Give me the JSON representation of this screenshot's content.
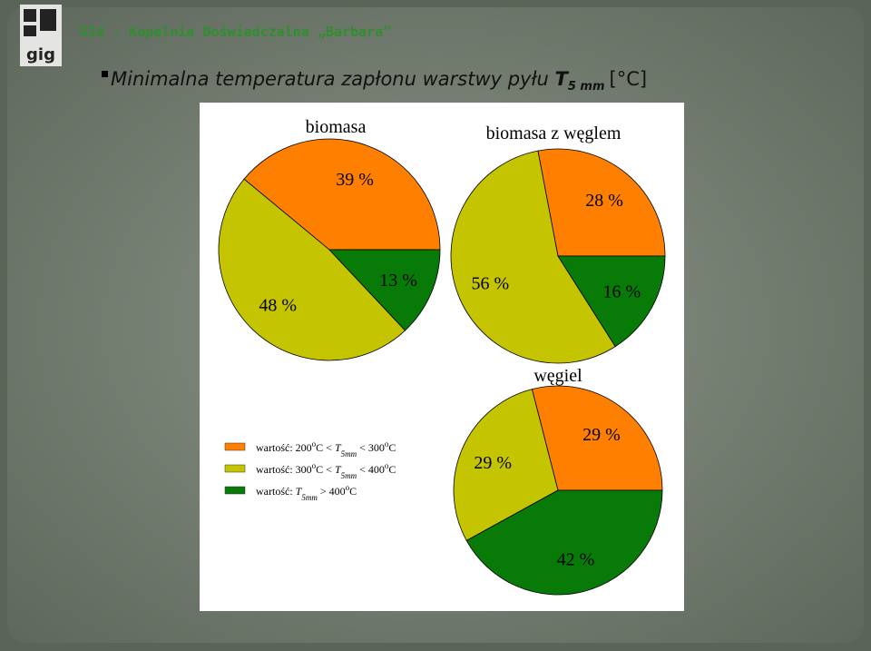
{
  "header": "GIG - Kopalnia Doświadczalna „Barbara”",
  "title": "Minimalna temperatura zapłonu warstwy pyłu",
  "title_symbol": "T",
  "title_subscript": "5 mm",
  "title_unit": "[°C]",
  "legend": [
    {
      "color": "#ff8000",
      "parts": [
        {
          "text": "wartość: 200"
        },
        {
          "text": "o",
          "shift": "sup"
        },
        {
          "text": "C < "
        },
        {
          "text": "T",
          "italic": true
        },
        {
          "text": "5mm",
          "shift": "sub",
          "italic": true
        },
        {
          "text": " < 300"
        },
        {
          "text": "o",
          "shift": "sup"
        },
        {
          "text": "C"
        }
      ]
    },
    {
      "color": "#c4c400",
      "parts": [
        {
          "text": "wartość: 300"
        },
        {
          "text": "o",
          "shift": "sup"
        },
        {
          "text": "C < "
        },
        {
          "text": "T",
          "italic": true
        },
        {
          "text": "5mm",
          "shift": "sub",
          "italic": true
        },
        {
          "text": " < 400"
        },
        {
          "text": "o",
          "shift": "sup"
        },
        {
          "text": "C"
        }
      ]
    },
    {
      "color": "#077a07",
      "parts": [
        {
          "text": "wartość: "
        },
        {
          "text": "T",
          "italic": true
        },
        {
          "text": "5mm",
          "shift": "sub",
          "italic": true
        },
        {
          "text": " > 400"
        },
        {
          "text": "o",
          "shift": "sup"
        },
        {
          "text": "C"
        }
      ]
    }
  ],
  "chart_data": [
    {
      "type": "pie",
      "title": "biomasa",
      "values": [
        39,
        48,
        13
      ],
      "value_labels": [
        "39 %",
        "48 %",
        "13 %"
      ],
      "colors": [
        "#ff8000",
        "#c4c400",
        "#077a07"
      ]
    },
    {
      "type": "pie",
      "title": "biomasa z węglem",
      "values": [
        28,
        56,
        16
      ],
      "value_labels": [
        "28 %",
        "56 %",
        "16 %"
      ],
      "colors": [
        "#ff8000",
        "#c4c400",
        "#077a07"
      ]
    },
    {
      "type": "pie",
      "title": "węgiel",
      "values": [
        29,
        29,
        42
      ],
      "value_labels": [
        "29 %",
        "29 %",
        "42 %"
      ],
      "colors": [
        "#ff8000",
        "#c4c400",
        "#077a07"
      ]
    }
  ]
}
